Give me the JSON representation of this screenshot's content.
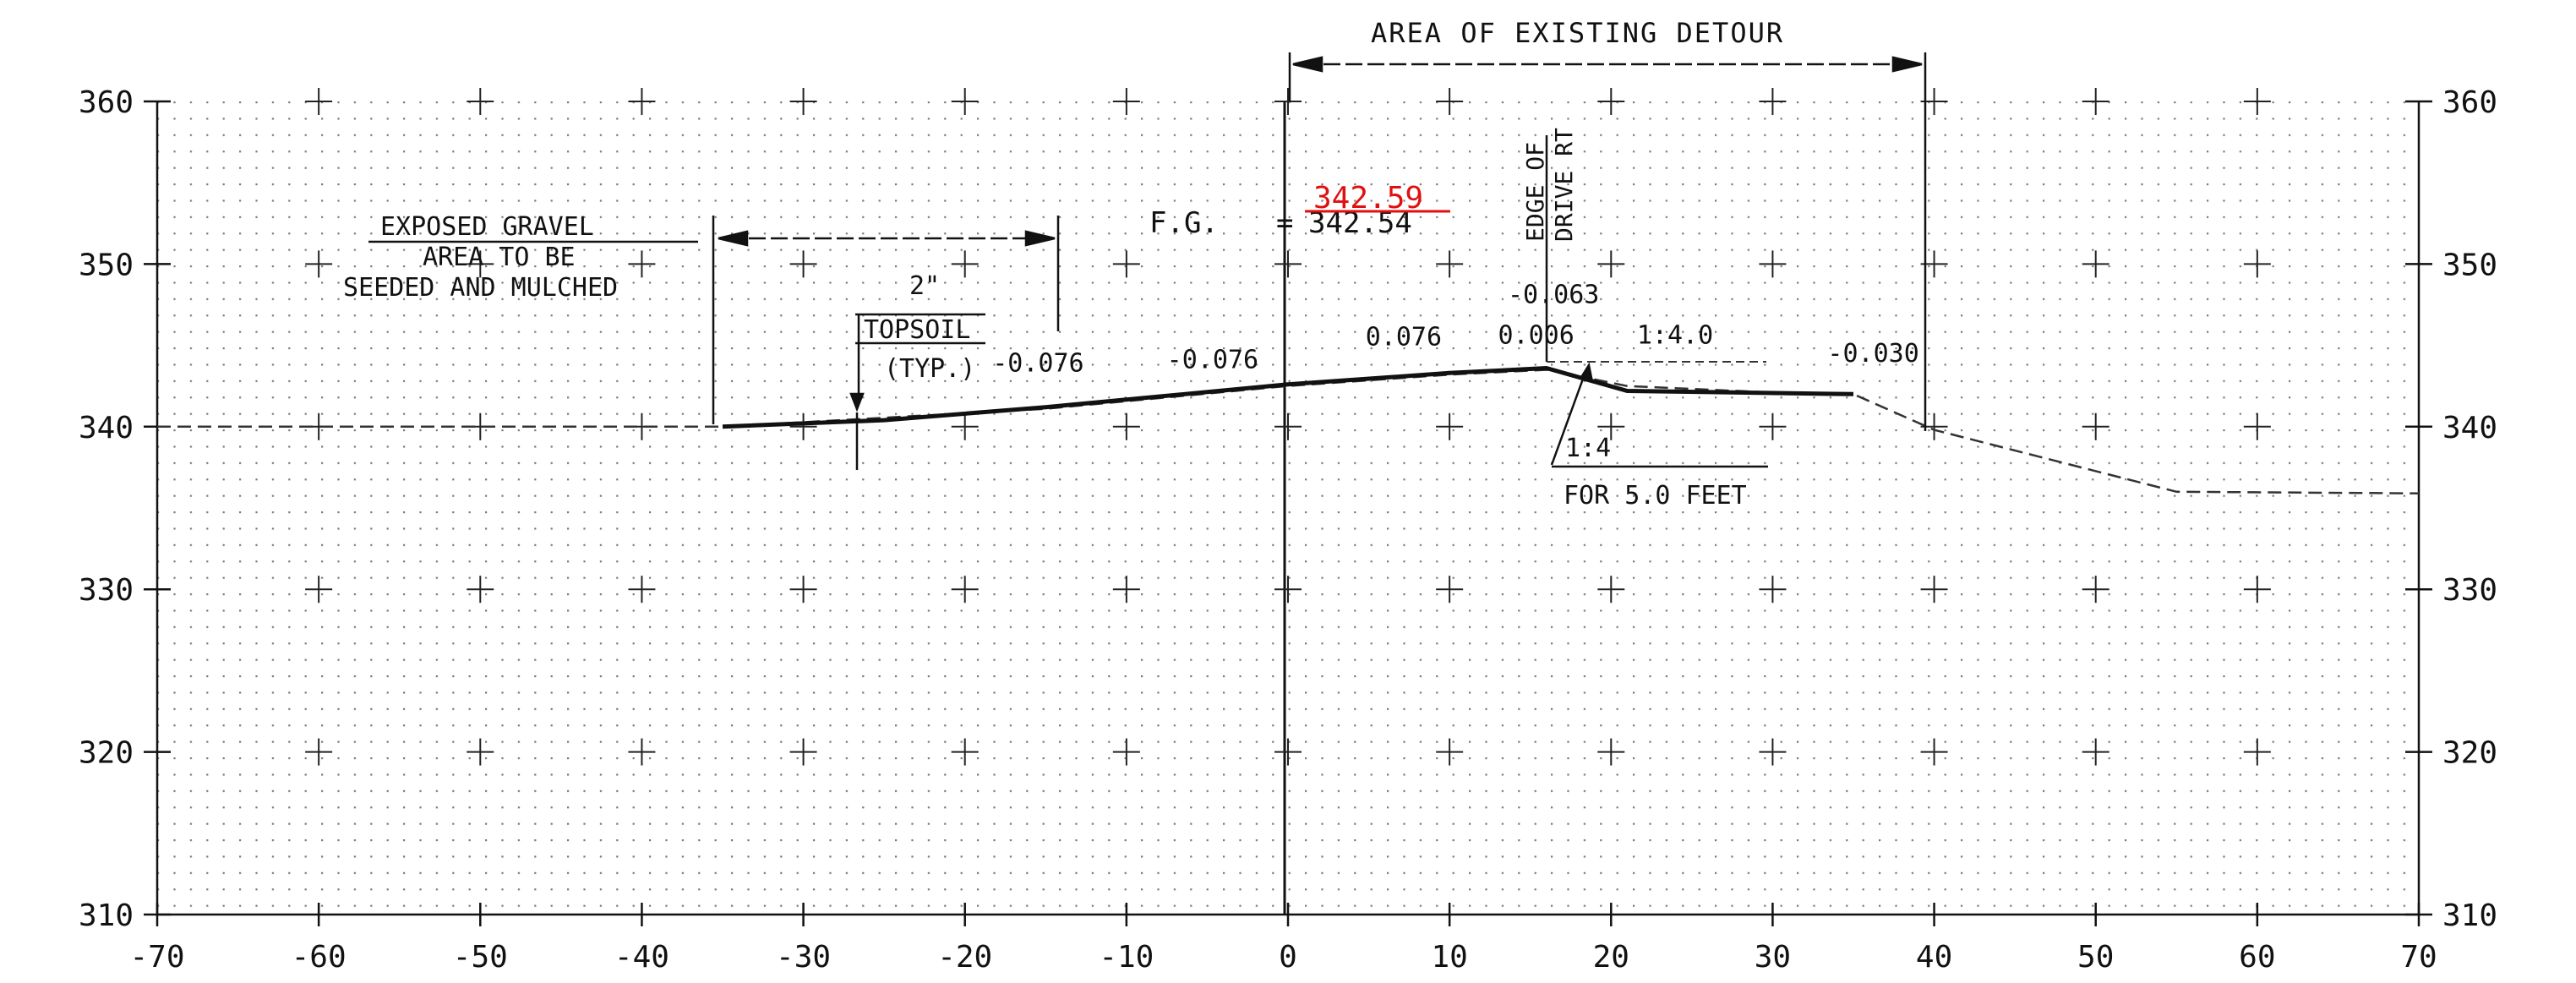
{
  "drawing": {
    "type": "cross-section",
    "x_axis": {
      "ticks": [
        -70,
        -60,
        -50,
        -40,
        -30,
        -20,
        -10,
        0,
        10,
        20,
        30,
        40,
        50,
        60,
        70
      ],
      "range": [
        -70,
        70
      ]
    },
    "y_axis": {
      "ticks": [
        310,
        320,
        330,
        340,
        350,
        360
      ],
      "range": [
        310,
        360
      ]
    },
    "grid": "dotted",
    "detour_area": {
      "label": "AREA OF EXISTING DETOUR",
      "from": 0,
      "to": 40
    },
    "gravel_area": {
      "line1": "EXPOSED GRAVEL",
      "line2": "AREA TO BE",
      "line3": "SEEDED AND MULCHED",
      "from": -35,
      "to": -14
    },
    "topsoil": {
      "thickness": "2\"",
      "label": "TOPSOIL",
      "note": "(TYP.)",
      "x": -26.5
    },
    "finished_grade": {
      "prefix": "F.G.",
      "original": "342.54",
      "revised": "342.59",
      "x": 0
    },
    "edge_of_drive": {
      "line1": "EDGE OF",
      "line2": "DRIVE RT",
      "x": 16
    },
    "slopes": [
      {
        "text": "-0.076",
        "x": -18.3,
        "y": 343.4
      },
      {
        "text": "-0.076",
        "x": -7.5,
        "y": 343.6
      },
      {
        "text": "0.076",
        "x": 4.8,
        "y": 345.0
      },
      {
        "text": "0.006",
        "x": 13.0,
        "y": 345.1
      },
      {
        "text": "-0.063",
        "x": 13.6,
        "y": 347.6
      },
      {
        "text": "1:4.0",
        "x": 21.6,
        "y": 345.1
      },
      {
        "text": "-0.030",
        "x": 33.4,
        "y": 344.0
      }
    ],
    "side_slope": {
      "ratio": "1:4",
      "note": "FOR 5.0 FEET"
    },
    "proposed_profile": [
      [
        -35,
        340.0
      ],
      [
        -25,
        340.4
      ],
      [
        -15,
        341.2
      ],
      [
        0,
        342.6
      ],
      [
        10,
        343.3
      ],
      [
        16,
        343.6
      ],
      [
        21,
        342.2
      ],
      [
        35,
        342.0
      ]
    ],
    "existing_profile": [
      [
        -70,
        340.0
      ],
      [
        -35,
        340.0
      ],
      [
        -15,
        341.1
      ],
      [
        0,
        342.5
      ],
      [
        10,
        343.2
      ],
      [
        16,
        343.5
      ],
      [
        21,
        342.5
      ],
      [
        30,
        342.1
      ],
      [
        35,
        342.0
      ],
      [
        40,
        339.8
      ],
      [
        55,
        336.0
      ],
      [
        70,
        335.9
      ]
    ]
  }
}
